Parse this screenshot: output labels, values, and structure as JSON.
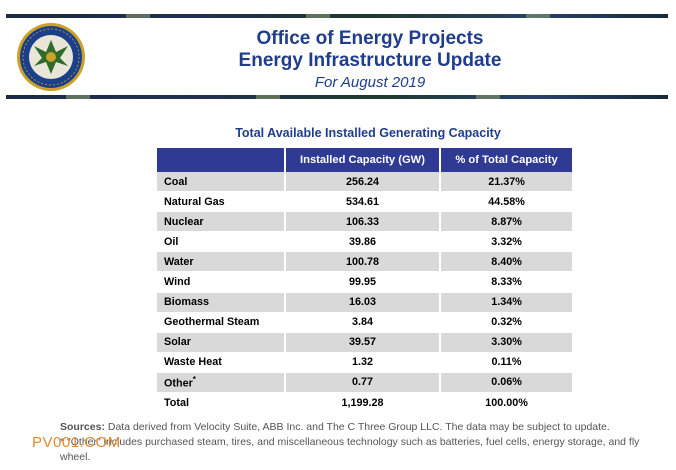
{
  "header": {
    "title1": "Office of Energy Projects",
    "title2": "Energy Infrastructure Update",
    "subtitle": "For August 2019"
  },
  "table": {
    "title": "Total Available Installed Generating Capacity",
    "columns": [
      "",
      "Installed Capacity (GW)",
      "% of Total Capacity"
    ],
    "rows": [
      {
        "name": "Coal",
        "capacity": "256.24",
        "percent": "21.37%"
      },
      {
        "name": "Natural Gas",
        "capacity": "534.61",
        "percent": "44.58%"
      },
      {
        "name": "Nuclear",
        "capacity": "106.33",
        "percent": "8.87%"
      },
      {
        "name": "Oil",
        "capacity": "39.86",
        "percent": "3.32%"
      },
      {
        "name": "Water",
        "capacity": "100.78",
        "percent": "8.40%"
      },
      {
        "name": "Wind",
        "capacity": "99.95",
        "percent": "8.33%"
      },
      {
        "name": "Biomass",
        "capacity": "16.03",
        "percent": "1.34%"
      },
      {
        "name": "Geothermal Steam",
        "capacity": "3.84",
        "percent": "0.32%"
      },
      {
        "name": "Solar",
        "capacity": "39.57",
        "percent": "3.30%"
      },
      {
        "name": "Waste Heat",
        "capacity": "1.32",
        "percent": "0.11%"
      },
      {
        "name": "Other",
        "name_sup": "*",
        "capacity": "0.77",
        "percent": "0.06%"
      },
      {
        "name": "Total",
        "capacity": "1,199.28",
        "percent": "100.00%"
      }
    ]
  },
  "notes": {
    "sources_label": "Sources:",
    "sources_text": " Data derived from Velocity Suite, ABB Inc. and The C Three Group LLC.  The data may be subject to update.",
    "other_note": "* \"Other\" includes purchased steam, tires, and miscellaneous technology such as batteries, fuel cells, energy storage, and fly wheel."
  },
  "watermark": "PV001.COM",
  "colors": {
    "title_blue": "#1f3d8c",
    "header_fill": "#2e3a93",
    "shaded_row": "#d9d9d9",
    "watermark": "#e08a32"
  },
  "icons": {
    "seal": "agency-seal-icon"
  }
}
